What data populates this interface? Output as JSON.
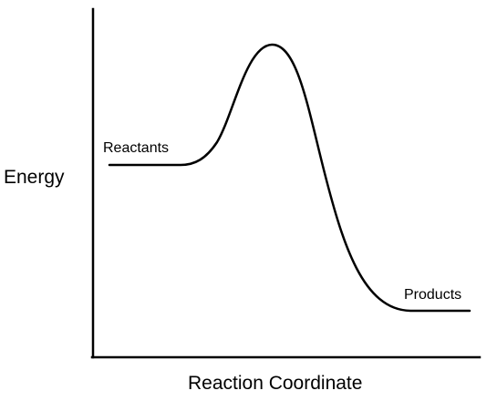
{
  "diagram": {
    "title": "",
    "y_axis_label": "Energy",
    "x_axis_label": "Reaction Coordinate",
    "reactants_label": "Reactants",
    "products_label": "Products",
    "line_color": "#000000",
    "background_color": "#ffffff"
  }
}
